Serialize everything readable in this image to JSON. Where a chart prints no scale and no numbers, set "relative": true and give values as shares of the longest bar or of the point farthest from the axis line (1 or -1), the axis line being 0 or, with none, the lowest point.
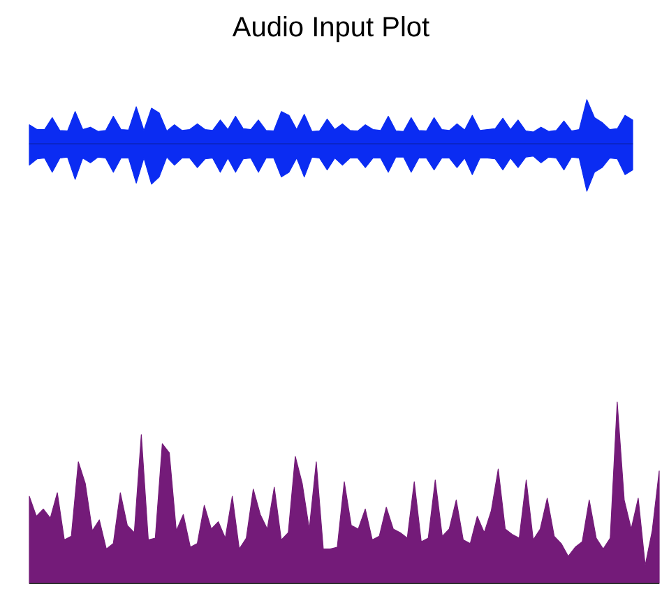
{
  "chart_data": [
    {
      "type": "area",
      "title": "Audio Input Plot",
      "relative": true,
      "ref_lines": [
        {
          "axis": "y",
          "value": 0,
          "color": "#0a1f9e"
        }
      ],
      "categories": [
        null,
        null,
        null,
        null,
        null,
        null,
        null,
        null,
        null,
        null,
        null,
        null,
        null,
        null,
        null,
        null,
        null,
        null,
        null,
        null,
        null,
        null,
        null,
        null,
        null,
        null,
        null,
        null,
        null,
        null,
        null,
        null,
        null,
        null,
        null,
        null,
        null,
        null,
        null,
        null,
        null,
        null,
        null,
        null,
        null,
        null,
        null,
        null,
        null,
        null,
        null,
        null,
        null,
        null,
        null,
        null,
        null,
        null,
        null,
        null,
        null,
        null,
        null,
        null,
        null,
        null,
        null,
        null,
        null,
        null,
        null,
        null,
        null,
        null,
        null,
        null,
        null,
        null,
        null,
        null
      ],
      "series": [
        {
          "color": "#0b2cf2",
          "values": [
            0.4,
            0.3,
            0.3,
            0.55,
            0.28,
            0.27,
            0.68,
            0.3,
            0.35,
            0.26,
            0.28,
            0.58,
            0.3,
            0.29,
            0.78,
            0.28,
            0.75,
            0.65,
            0.27,
            0.4,
            0.28,
            0.3,
            0.42,
            0.3,
            0.28,
            0.5,
            0.3,
            0.58,
            0.32,
            0.3,
            0.5,
            0.28,
            0.27,
            0.68,
            0.6,
            0.3,
            0.62,
            0.26,
            0.27,
            0.52,
            0.3,
            0.42,
            0.28,
            0.27,
            0.4,
            0.3,
            0.28,
            0.58,
            0.27,
            0.26,
            0.55,
            0.28,
            0.27,
            0.55,
            0.3,
            0.28,
            0.42,
            0.29,
            0.6,
            0.28,
            0.3,
            0.32,
            0.54,
            0.3,
            0.5,
            0.27,
            0.25,
            0.35,
            0.26,
            0.28,
            0.48,
            0.27,
            0.3,
            0.93,
            0.55,
            0.45,
            0.3,
            0.32,
            0.6,
            0.5
          ]
        },
        {
          "color": "#0b2cf2",
          "values": [
            -0.45,
            -0.32,
            -0.3,
            -0.6,
            -0.3,
            -0.28,
            -0.75,
            -0.3,
            -0.4,
            -0.28,
            -0.3,
            -0.6,
            -0.3,
            -0.3,
            -0.83,
            -0.3,
            -0.85,
            -0.7,
            -0.28,
            -0.45,
            -0.3,
            -0.3,
            -0.5,
            -0.32,
            -0.3,
            -0.6,
            -0.3,
            -0.6,
            -0.32,
            -0.3,
            -0.6,
            -0.3,
            -0.3,
            -0.7,
            -0.6,
            -0.3,
            -0.7,
            -0.28,
            -0.3,
            -0.55,
            -0.3,
            -0.45,
            -0.3,
            -0.3,
            -0.5,
            -0.3,
            -0.3,
            -0.6,
            -0.28,
            -0.28,
            -0.6,
            -0.3,
            -0.3,
            -0.55,
            -0.3,
            -0.3,
            -0.5,
            -0.3,
            -0.65,
            -0.3,
            -0.3,
            -0.32,
            -0.55,
            -0.3,
            -0.5,
            -0.28,
            -0.26,
            -0.4,
            -0.28,
            -0.3,
            -0.55,
            -0.28,
            -0.3,
            -1.0,
            -0.6,
            -0.5,
            -0.3,
            -0.32,
            -0.65,
            -0.55
          ]
        }
      ]
    },
    {
      "type": "area",
      "relative": true,
      "categories": [
        null,
        null,
        null,
        null,
        null,
        null,
        null,
        null,
        null,
        null,
        null,
        null,
        null,
        null,
        null,
        null,
        null,
        null,
        null,
        null,
        null,
        null,
        null,
        null,
        null,
        null,
        null,
        null,
        null,
        null,
        null,
        null,
        null,
        null,
        null,
        null,
        null,
        null,
        null,
        null,
        null,
        null,
        null,
        null,
        null,
        null,
        null,
        null,
        null,
        null,
        null,
        null,
        null,
        null,
        null,
        null,
        null,
        null,
        null,
        null,
        null,
        null,
        null,
        null,
        null,
        null,
        null,
        null,
        null,
        null,
        null,
        null,
        null,
        null,
        null,
        null,
        null,
        null,
        null,
        null,
        null,
        null,
        null,
        null,
        null,
        null,
        null,
        null,
        null,
        null,
        null
      ],
      "color": "#741b79",
      "values": [
        0.48,
        0.37,
        0.41,
        0.36,
        0.5,
        0.24,
        0.26,
        0.67,
        0.55,
        0.29,
        0.35,
        0.19,
        0.22,
        0.5,
        0.32,
        0.28,
        0.82,
        0.24,
        0.25,
        0.77,
        0.72,
        0.29,
        0.38,
        0.2,
        0.22,
        0.43,
        0.3,
        0.34,
        0.25,
        0.48,
        0.19,
        0.25,
        0.52,
        0.38,
        0.3,
        0.53,
        0.24,
        0.28,
        0.7,
        0.55,
        0.3,
        0.67,
        0.19,
        0.19,
        0.2,
        0.56,
        0.32,
        0.3,
        0.41,
        0.24,
        0.26,
        0.42,
        0.3,
        0.28,
        0.25,
        0.56,
        0.23,
        0.25,
        0.57,
        0.26,
        0.3,
        0.46,
        0.24,
        0.22,
        0.37,
        0.28,
        0.4,
        0.63,
        0.3,
        0.27,
        0.25,
        0.57,
        0.24,
        0.3,
        0.47,
        0.26,
        0.22,
        0.15,
        0.2,
        0.23,
        0.46,
        0.25,
        0.19,
        0.25,
        1.0,
        0.46,
        0.3,
        0.47,
        0.1,
        0.29,
        0.62
      ]
    }
  ]
}
